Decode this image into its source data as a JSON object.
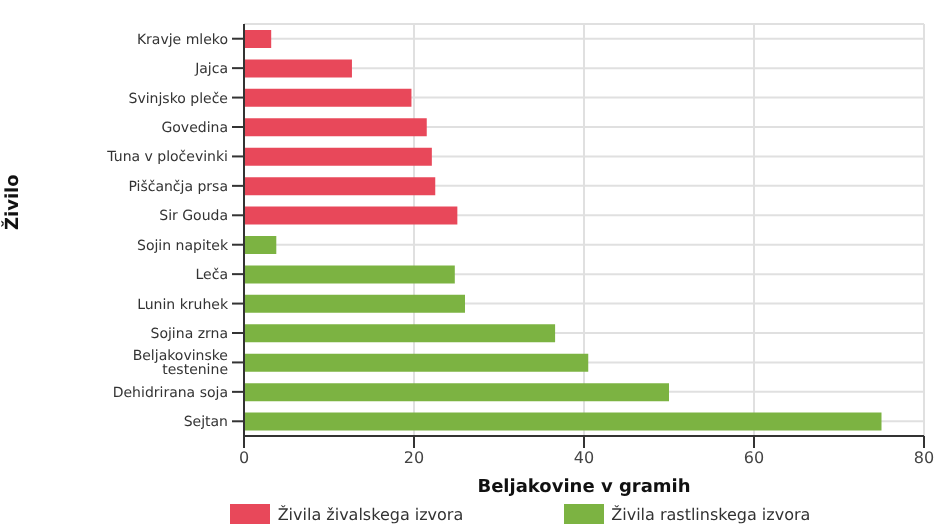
{
  "chart_data": {
    "type": "bar",
    "orientation": "horizontal",
    "stacked": true,
    "xlabel": "Beljakovine v gramih",
    "ylabel": "Živilo",
    "categories": [
      "Kravje mleko",
      "Jajca",
      "Svinjsko pleče",
      "Govedina",
      "Tuna v pločevinki",
      "Piščančja prsa",
      "Sir Gouda",
      "Sojin napitek",
      "Leča",
      "Lunin kruhek",
      "Sojina zrna",
      "Beljakovinske testenine",
      "Dehidrirana soja",
      "Sejtan"
    ],
    "series": [
      {
        "name": "Živila živalskega izvora",
        "color": "#e8485a",
        "values": [
          3.2,
          12.7,
          19.7,
          21.5,
          22.1,
          22.5,
          25.1,
          null,
          null,
          null,
          null,
          null,
          null,
          null
        ]
      },
      {
        "name": "Živila rastlinskega izvora",
        "color": "#7cb342",
        "values": [
          null,
          null,
          null,
          null,
          null,
          null,
          null,
          3.8,
          24.8,
          26,
          36.6,
          40.5,
          50,
          75
        ]
      }
    ],
    "xlim": [
      0,
      80
    ],
    "xticks": [
      0,
      20,
      40,
      60,
      80
    ],
    "grid": true,
    "legend": "bottom"
  }
}
